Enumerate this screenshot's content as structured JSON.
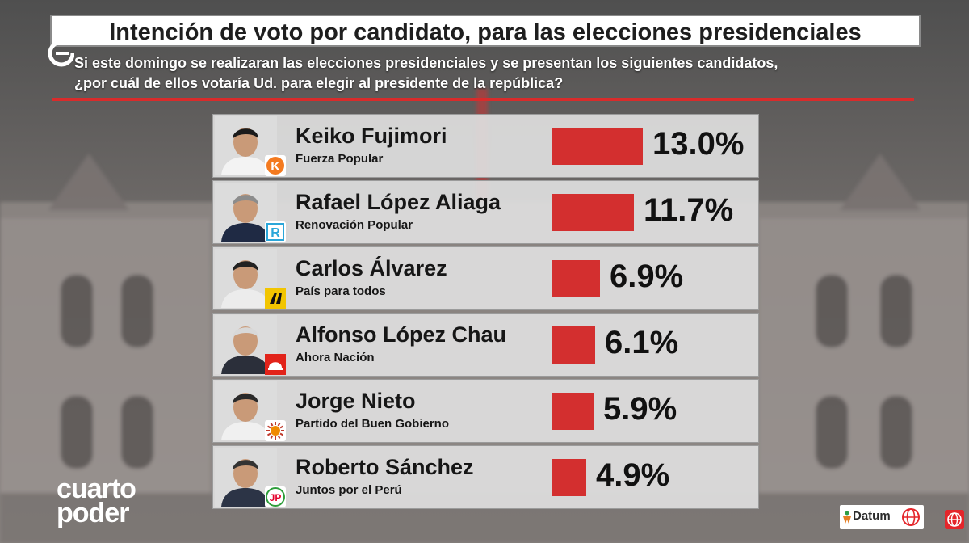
{
  "header": {
    "title": "Intención de voto por candidato, para las elecciones presidenciales",
    "question_line1": "Si este domingo se realizaran las elecciones presidenciales y se presentan los siguientes candidatos,",
    "question_line2": "¿por cuál de ellos votaría Ud. para elegir al presidente de la república?"
  },
  "chart_data": {
    "type": "bar",
    "orientation": "horizontal",
    "unit": "%",
    "categories": [
      "Keiko Fujimori",
      "Rafael López Aliaga",
      "Carlos Álvarez",
      "Alfonso López Chau",
      "Jorge Nieto",
      "Roberto Sánchez"
    ],
    "values": [
      13.0,
      11.7,
      6.9,
      6.1,
      5.9,
      4.9
    ],
    "rows": [
      {
        "name": "Keiko Fujimori",
        "party": "Fuerza Popular",
        "value": 13.0,
        "label": "13.0%",
        "party_logo": "K",
        "logo_color": "#f47a1f"
      },
      {
        "name": "Rafael López Aliaga",
        "party": "Renovación Popular",
        "value": 11.7,
        "label": "11.7%",
        "party_logo": "R",
        "logo_color": "#2aa6d9"
      },
      {
        "name": "Carlos Álvarez",
        "party": "País para todos",
        "value": 6.9,
        "label": "6.9%",
        "party_logo": "road-icon",
        "logo_color": "#f2c500"
      },
      {
        "name": "Alfonso López Chau",
        "party": "Ahora Nación",
        "value": 6.1,
        "label": "6.1%",
        "party_logo": "helmet-icon",
        "logo_color": "#e2231a"
      },
      {
        "name": "Jorge Nieto",
        "party": "Partido del Buen Gobierno",
        "value": 5.9,
        "label": "5.9%",
        "party_logo": "sun-icon",
        "logo_color": "#f08a00"
      },
      {
        "name": "Roberto Sánchez",
        "party": "Juntos por el  Perú",
        "value": 4.9,
        "label": "4.9%",
        "party_logo": "JP",
        "logo_color": "#e4002b"
      }
    ],
    "bar_color": "#d32f2f"
  },
  "footer": {
    "brand_line1": "cuarto",
    "brand_line2": "poder",
    "pollster": "Datum"
  },
  "colors": {
    "accent_red": "#d92b2b",
    "row_bg": "#dedede"
  }
}
